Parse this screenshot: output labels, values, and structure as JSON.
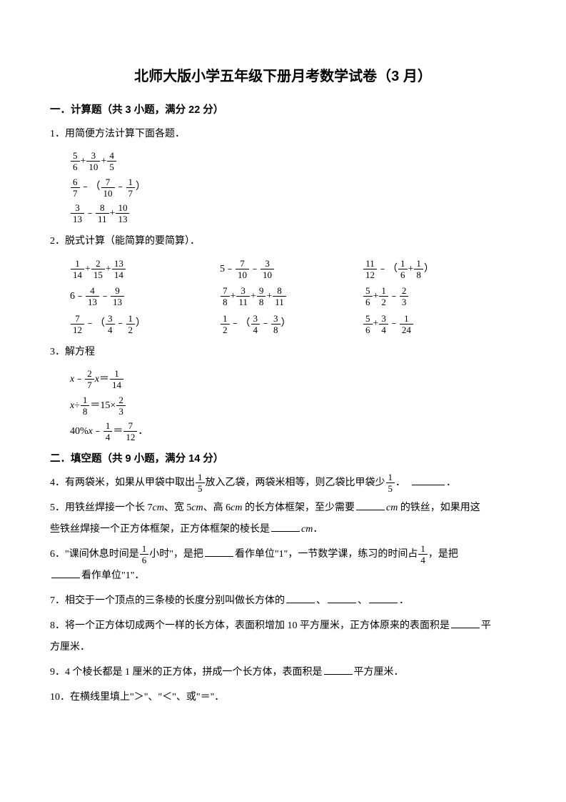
{
  "title": "北师大版小学五年级下册月考数学试卷（3 月）",
  "section1": {
    "head": "一．计算题（共 3 小题，满分 22 分）",
    "q1_label": "1．用简便方法计算下面各题．",
    "q1": {
      "a_n1": "5",
      "a_d1": "6",
      "a_n2": "3",
      "a_d2": "10",
      "a_n3": "4",
      "a_d3": "5",
      "b_n1": "6",
      "b_d1": "7",
      "b_n2": "7",
      "b_d2": "10",
      "b_n3": "1",
      "b_d3": "7",
      "c_n1": "3",
      "c_d1": "13",
      "c_n2": "8",
      "c_d2": "11",
      "c_n3": "10",
      "c_d3": "13"
    },
    "q2_label": "2．脱式计算（能简算的要简算）．",
    "q2": {
      "r1c1": {
        "a": "1",
        "b": "14",
        "c": "2",
        "d": "15",
        "e": "13",
        "f": "14"
      },
      "r1c2_prefix": "5",
      "r1c2": {
        "a": "7",
        "b": "10",
        "c": "3",
        "d": "10"
      },
      "r1c3": {
        "a": "11",
        "b": "12",
        "c": "1",
        "d": "6",
        "e": "1",
        "f": "8"
      },
      "r2c1_prefix": "6",
      "r2c1": {
        "a": "4",
        "b": "13",
        "c": "9",
        "d": "13"
      },
      "r2c2": {
        "a": "7",
        "b": "8",
        "c": "3",
        "d": "11",
        "e": "9",
        "f": "8",
        "g": "8",
        "h": "11"
      },
      "r2c3": {
        "a": "5",
        "b": "6",
        "c": "1",
        "d": "2",
        "e": "2",
        "f": "3"
      },
      "r3c1": {
        "a": "7",
        "b": "12",
        "c": "3",
        "d": "4",
        "e": "1",
        "f": "2"
      },
      "r3c2": {
        "a": "1",
        "b": "2",
        "c": "3",
        "d": "4",
        "e": "3",
        "f": "8"
      },
      "r3c3": {
        "a": "5",
        "b": "6",
        "c": "3",
        "d": "4",
        "e": "1",
        "f": "24"
      }
    },
    "q3_label": "3．解方程",
    "q3": {
      "a_x": "x",
      "a_n1": "2",
      "a_d1": "7",
      "a_n2": "1",
      "a_d2": "14",
      "b_x": "x",
      "b_n1": "1",
      "b_d1": "8",
      "b_mid": "＝15×",
      "b_n2": "2",
      "b_d2": "3",
      "c_pref": "40%",
      "c_x": "x",
      "c_n1": "1",
      "c_d1": "4",
      "c_n2": "7",
      "c_d2": "12",
      "c_end": "．"
    }
  },
  "section2": {
    "head": "二．填空题（共 9 小题，满分 14 分）",
    "q4_pre": "4．有两袋米，如果从甲袋中取出",
    "q4_n1": "1",
    "q4_d1": "5",
    "q4_mid": "放入乙袋，两袋米相等，则乙袋比甲袋少",
    "q4_n2": "1",
    "q4_d2": "5",
    "q4_post": "．",
    "q4_end": "．",
    "q5_a": "5．用铁丝焊接一个长 7",
    "q5_cm": "cm",
    "q5_b": "、宽 5",
    "q5_c": "、高 6",
    "q5_d": " 的长方体框架，至少需要",
    "q5_e": " 的铁丝，如果用这",
    "q5_line2_a": "些铁丝焊接一个正方体框架，正方体框架的棱长是",
    "q5_line2_b": "．",
    "q6_a": "6．\"课间休息时间是",
    "q6_n1": "1",
    "q6_d1": "6",
    "q6_b": "小时\"，是把",
    "q6_c": "看作单位\"1\"，一节数学课，练习的时间占",
    "q6_n2": "1",
    "q6_d2": "4",
    "q6_d": "，是把",
    "q6_line2": "看作单位\"1\"．",
    "q7": "7．相交于一个顶点的三条棱的长度分别叫做长方体的",
    "q7_sep": "、",
    "q7_end": "．",
    "q8_a": "8．将一个正方体切成两个一样的长方体，表面积增加 10 平方厘米，正方体原来的表面积是",
    "q8_b": "平",
    "q8_line2": "方厘米．",
    "q9_a": "9．4 个棱长都是 1 厘米的正方体，拼成一个长方体，表面积是",
    "q9_b": "平方厘米．",
    "q10": "10．在横线里填上\"＞\"、\"＜\"、或\"＝\"．"
  }
}
